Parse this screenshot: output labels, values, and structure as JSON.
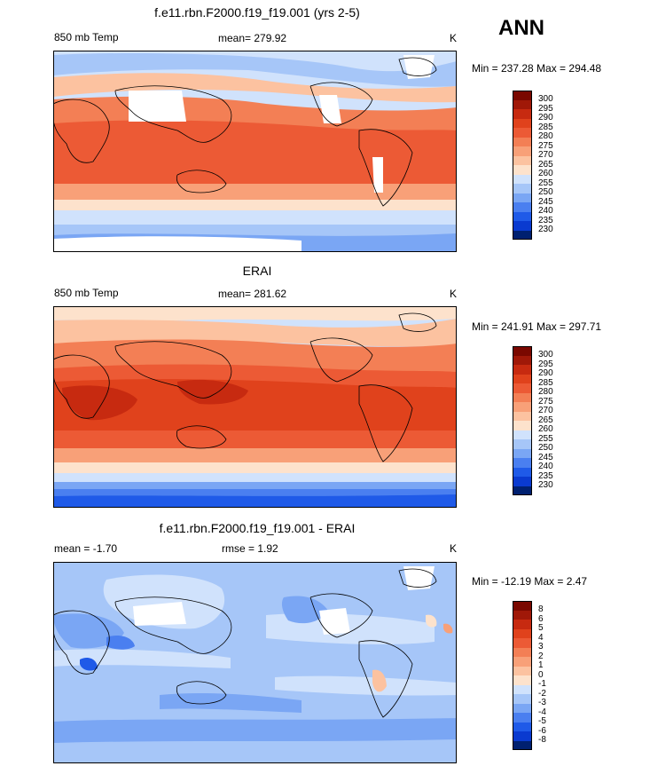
{
  "season": "ANN",
  "colors": [
    "#002070",
    "#0a3ad0",
    "#1f5ae8",
    "#4a7ff0",
    "#7aa6f4",
    "#a6c6f8",
    "#d0e2fc",
    "#ffffff",
    "#fde2cc",
    "#fcc2a0",
    "#f8a078",
    "#f37f55",
    "#ec5a35",
    "#e0421c",
    "#c72a10",
    "#a01808",
    "#7a0800"
  ],
  "panels": [
    {
      "title": "f.e11.rbn.F2000.f19_f19.001 (yrs 2-5)",
      "left": "850 mb Temp",
      "center": "mean= 279.92",
      "units": "K",
      "minmax": "Min = 237.28 Max = 294.48",
      "colorbar_labels": [
        "300",
        "295",
        "290",
        "285",
        "280",
        "275",
        "270",
        "265",
        "260",
        "255",
        "250",
        "245",
        "240",
        "235",
        "230"
      ]
    },
    {
      "title": "ERAI",
      "left": "850 mb Temp",
      "center": "mean= 281.62",
      "units": "K",
      "minmax": "Min = 241.91 Max = 297.71",
      "colorbar_labels": [
        "300",
        "295",
        "290",
        "285",
        "280",
        "275",
        "270",
        "265",
        "260",
        "255",
        "250",
        "245",
        "240",
        "235",
        "230"
      ]
    },
    {
      "title": "f.e11.rbn.F2000.f19_f19.001 - ERAI",
      "left": "mean =  -1.70",
      "center": "rmse =  1.92",
      "units": "K",
      "minmax": "Min = -12.19 Max =  2.47",
      "colorbar_labels": [
        "8",
        "6",
        "5",
        "4",
        "3",
        "2",
        "1",
        "0",
        "-1",
        "-2",
        "-3",
        "-4",
        "-5",
        "-6",
        "-8"
      ]
    }
  ]
}
